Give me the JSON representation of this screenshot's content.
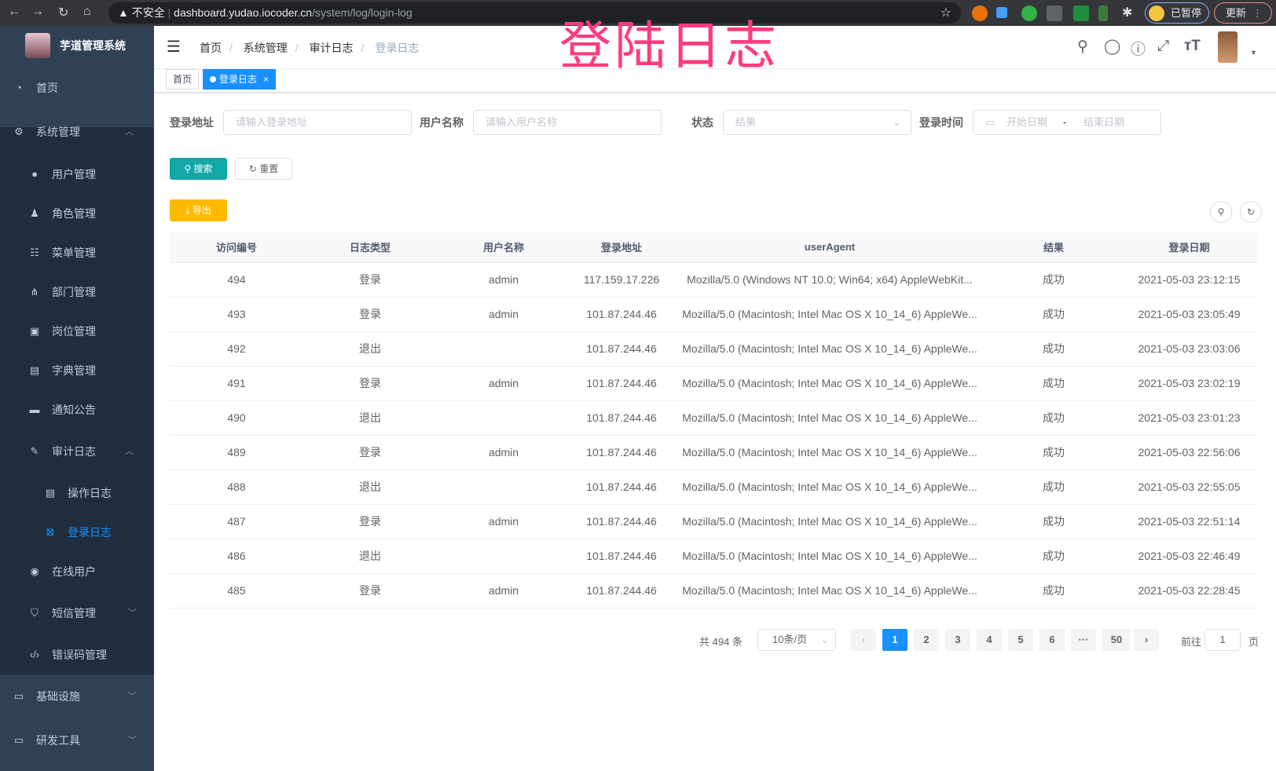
{
  "browser": {
    "security": "不安全",
    "url_host": "dashboard.yudao.iocoder.cn",
    "url_path": "/system/log/login-log",
    "paused": "已暂停",
    "update": "更新"
  },
  "overlay_title": "登陆日志",
  "sidebar": {
    "brand": "芋道管理系统",
    "items": [
      {
        "label": "首页",
        "icon": "dashboard-icon"
      },
      {
        "label": "系统管理",
        "icon": "gear-icon",
        "expanded": true
      },
      {
        "label": "用户管理",
        "icon": "user-icon"
      },
      {
        "label": "角色管理",
        "icon": "peoples-icon"
      },
      {
        "label": "菜单管理",
        "icon": "tree-table-icon"
      },
      {
        "label": "部门管理",
        "icon": "tree-icon"
      },
      {
        "label": "岗位管理",
        "icon": "post-icon"
      },
      {
        "label": "字典管理",
        "icon": "dict-icon"
      },
      {
        "label": "通知公告",
        "icon": "message-icon"
      },
      {
        "label": "审计日志",
        "icon": "log-icon",
        "expanded": true
      },
      {
        "label": "操作日志",
        "icon": "form-icon"
      },
      {
        "label": "登录日志",
        "icon": "logininfor-icon",
        "active": true
      },
      {
        "label": "在线用户",
        "icon": "online-icon"
      },
      {
        "label": "短信管理",
        "icon": "validcode-icon"
      },
      {
        "label": "错误码管理",
        "icon": "code-icon"
      },
      {
        "label": "基础设施",
        "icon": "monitor-icon"
      },
      {
        "label": "研发工具",
        "icon": "tool-icon"
      }
    ]
  },
  "breadcrumb": [
    "首页",
    "系统管理",
    "审计日志",
    "登录日志"
  ],
  "tags": [
    {
      "label": "首页"
    },
    {
      "label": "登录日志",
      "active": true
    }
  ],
  "filters": {
    "address_label": "登录地址",
    "address_placeholder": "请输入登录地址",
    "username_label": "用户名称",
    "username_placeholder": "请输入用户名称",
    "status_label": "状态",
    "status_placeholder": "结果",
    "time_label": "登录时间",
    "start_placeholder": "开始日期",
    "sep": "-",
    "end_placeholder": "结束日期"
  },
  "buttons": {
    "search": "搜索",
    "reset": "重置",
    "export": "导出"
  },
  "table": {
    "columns": [
      "访问编号",
      "日志类型",
      "用户名称",
      "登录地址",
      "userAgent",
      "结果",
      "登录日期"
    ],
    "rows": [
      [
        "494",
        "登录",
        "admin",
        "117.159.17.226",
        "Mozilla/5.0 (Windows NT 10.0; Win64; x64) AppleWebKit...",
        "成功",
        "2021-05-03 23:12:15"
      ],
      [
        "493",
        "登录",
        "admin",
        "101.87.244.46",
        "Mozilla/5.0 (Macintosh; Intel Mac OS X 10_14_6) AppleWe...",
        "成功",
        "2021-05-03 23:05:49"
      ],
      [
        "492",
        "退出",
        "",
        "101.87.244.46",
        "Mozilla/5.0 (Macintosh; Intel Mac OS X 10_14_6) AppleWe...",
        "成功",
        "2021-05-03 23:03:06"
      ],
      [
        "491",
        "登录",
        "admin",
        "101.87.244.46",
        "Mozilla/5.0 (Macintosh; Intel Mac OS X 10_14_6) AppleWe...",
        "成功",
        "2021-05-03 23:02:19"
      ],
      [
        "490",
        "退出",
        "",
        "101.87.244.46",
        "Mozilla/5.0 (Macintosh; Intel Mac OS X 10_14_6) AppleWe...",
        "成功",
        "2021-05-03 23:01:23"
      ],
      [
        "489",
        "登录",
        "admin",
        "101.87.244.46",
        "Mozilla/5.0 (Macintosh; Intel Mac OS X 10_14_6) AppleWe...",
        "成功",
        "2021-05-03 22:56:06"
      ],
      [
        "488",
        "退出",
        "",
        "101.87.244.46",
        "Mozilla/5.0 (Macintosh; Intel Mac OS X 10_14_6) AppleWe...",
        "成功",
        "2021-05-03 22:55:05"
      ],
      [
        "487",
        "登录",
        "admin",
        "101.87.244.46",
        "Mozilla/5.0 (Macintosh; Intel Mac OS X 10_14_6) AppleWe...",
        "成功",
        "2021-05-03 22:51:14"
      ],
      [
        "486",
        "退出",
        "",
        "101.87.244.46",
        "Mozilla/5.0 (Macintosh; Intel Mac OS X 10_14_6) AppleWe...",
        "成功",
        "2021-05-03 22:46:49"
      ],
      [
        "485",
        "登录",
        "admin",
        "101.87.244.46",
        "Mozilla/5.0 (Macintosh; Intel Mac OS X 10_14_6) AppleWe...",
        "成功",
        "2021-05-03 22:28:45"
      ]
    ]
  },
  "pagination": {
    "total": "共 494 条",
    "page_size": "10条/页",
    "pages": [
      "1",
      "2",
      "3",
      "4",
      "5",
      "6",
      "···",
      "50"
    ],
    "current": "1",
    "goto_label": "前往",
    "goto_value": "1",
    "goto_suffix": "页"
  },
  "colors": {
    "sidebar": "#304156",
    "submenu": "#1f2d3d",
    "primary": "#1890ff",
    "search": "#13a8a8",
    "export": "#ffba00",
    "title": "#ff3b7f"
  }
}
